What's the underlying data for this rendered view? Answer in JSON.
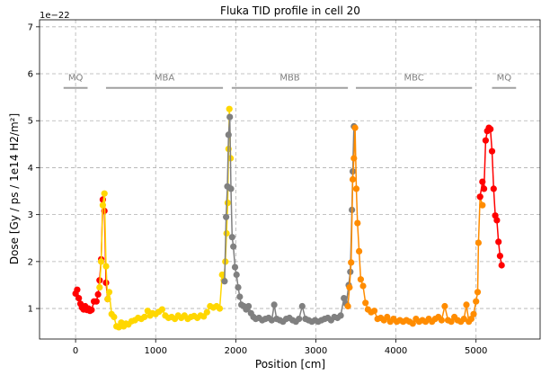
{
  "chart_data": {
    "type": "scatter",
    "title": "Fluka TID profile in cell 20",
    "xlabel": "Position [cm]",
    "ylabel": "Dose [Gy / ps / 1e14 H2/m²]",
    "offset_text": "1e−22",
    "xlim": [
      -450,
      5800
    ],
    "ylim": [
      0.35,
      7.15
    ],
    "xticks": [
      0,
      1000,
      2000,
      3000,
      4000,
      5000
    ],
    "yticks": [
      1,
      2,
      3,
      4,
      5,
      6,
      7
    ],
    "grid": true,
    "regions": [
      {
        "label": "MQ",
        "x0": -150,
        "x1": 150,
        "y": 5.7
      },
      {
        "label": "MBA",
        "x0": 380,
        "x1": 1840,
        "y": 5.7
      },
      {
        "label": "MBB",
        "x0": 1950,
        "x1": 3400,
        "y": 5.7
      },
      {
        "label": "MBC",
        "x0": 3500,
        "x1": 4950,
        "y": 5.7
      },
      {
        "label": "MQ",
        "x0": 5200,
        "x1": 5500,
        "y": 5.7
      }
    ],
    "series": [
      {
        "color": "#ff0000",
        "points": [
          [
            0,
            1.32
          ],
          [
            20,
            1.4
          ],
          [
            40,
            1.22
          ],
          [
            60,
            1.1
          ],
          [
            80,
            1.02
          ],
          [
            100,
            0.98
          ],
          [
            120,
            1.05
          ],
          [
            140,
            0.97
          ],
          [
            160,
            1.0
          ],
          [
            180,
            0.95
          ],
          [
            200,
            0.97
          ],
          [
            230,
            1.15
          ],
          [
            260,
            1.15
          ],
          [
            280,
            1.3
          ],
          [
            300,
            1.6
          ],
          [
            320,
            2.05
          ],
          [
            340,
            3.32
          ],
          [
            360,
            3.08
          ],
          [
            380,
            1.55
          ],
          [
            400,
            1.2
          ]
        ]
      },
      {
        "color": "#ffd700",
        "points": [
          [
            300,
            1.45
          ],
          [
            320,
            2.0
          ],
          [
            340,
            3.2
          ],
          [
            360,
            3.45
          ],
          [
            380,
            1.9
          ],
          [
            400,
            1.2
          ],
          [
            420,
            1.35
          ],
          [
            450,
            0.88
          ],
          [
            480,
            0.82
          ],
          [
            510,
            0.62
          ],
          [
            540,
            0.6
          ],
          [
            570,
            0.7
          ],
          [
            600,
            0.62
          ],
          [
            630,
            0.68
          ],
          [
            660,
            0.66
          ],
          [
            700,
            0.73
          ],
          [
            740,
            0.75
          ],
          [
            780,
            0.8
          ],
          [
            820,
            0.78
          ],
          [
            860,
            0.82
          ],
          [
            900,
            0.95
          ],
          [
            930,
            0.85
          ],
          [
            960,
            0.9
          ],
          [
            1000,
            0.88
          ],
          [
            1040,
            0.93
          ],
          [
            1080,
            0.98
          ],
          [
            1120,
            0.85
          ],
          [
            1160,
            0.8
          ],
          [
            1200,
            0.82
          ],
          [
            1240,
            0.78
          ],
          [
            1280,
            0.85
          ],
          [
            1320,
            0.8
          ],
          [
            1360,
            0.85
          ],
          [
            1400,
            0.78
          ],
          [
            1440,
            0.82
          ],
          [
            1480,
            0.84
          ],
          [
            1520,
            0.8
          ],
          [
            1560,
            0.85
          ],
          [
            1600,
            0.83
          ],
          [
            1640,
            0.92
          ],
          [
            1680,
            1.05
          ],
          [
            1720,
            1.02
          ],
          [
            1760,
            1.05
          ],
          [
            1800,
            1.0
          ],
          [
            1830,
            1.72
          ],
          [
            1850,
            1.6
          ],
          [
            1870,
            2.0
          ],
          [
            1885,
            2.6
          ],
          [
            1900,
            3.25
          ],
          [
            1910,
            4.4
          ],
          [
            1920,
            5.25
          ],
          [
            1935,
            4.2
          ]
        ]
      },
      {
        "color": "#808080",
        "points": [
          [
            1860,
            1.58
          ],
          [
            1880,
            2.95
          ],
          [
            1895,
            3.6
          ],
          [
            1910,
            4.7
          ],
          [
            1925,
            5.08
          ],
          [
            1940,
            3.55
          ],
          [
            1955,
            2.52
          ],
          [
            1970,
            2.32
          ],
          [
            1990,
            1.88
          ],
          [
            2010,
            1.72
          ],
          [
            2030,
            1.45
          ],
          [
            2050,
            1.25
          ],
          [
            2070,
            1.08
          ],
          [
            2100,
            1.05
          ],
          [
            2130,
            0.98
          ],
          [
            2160,
            1.05
          ],
          [
            2190,
            0.9
          ],
          [
            2220,
            0.82
          ],
          [
            2250,
            0.78
          ],
          [
            2290,
            0.8
          ],
          [
            2330,
            0.75
          ],
          [
            2370,
            0.78
          ],
          [
            2410,
            0.8
          ],
          [
            2450,
            0.75
          ],
          [
            2480,
            1.08
          ],
          [
            2510,
            0.78
          ],
          [
            2550,
            0.75
          ],
          [
            2590,
            0.72
          ],
          [
            2630,
            0.78
          ],
          [
            2670,
            0.8
          ],
          [
            2710,
            0.75
          ],
          [
            2750,
            0.72
          ],
          [
            2790,
            0.78
          ],
          [
            2830,
            1.05
          ],
          [
            2870,
            0.78
          ],
          [
            2910,
            0.75
          ],
          [
            2950,
            0.72
          ],
          [
            2990,
            0.75
          ],
          [
            3030,
            0.72
          ],
          [
            3070,
            0.75
          ],
          [
            3110,
            0.78
          ],
          [
            3150,
            0.8
          ],
          [
            3190,
            0.75
          ],
          [
            3230,
            0.82
          ],
          [
            3270,
            0.8
          ],
          [
            3310,
            0.85
          ],
          [
            3350,
            1.22
          ],
          [
            3380,
            1.1
          ],
          [
            3410,
            1.5
          ],
          [
            3430,
            1.78
          ],
          [
            3450,
            3.1
          ],
          [
            3460,
            3.92
          ],
          [
            3475,
            4.88
          ]
        ]
      },
      {
        "color": "#ff8c00",
        "points": [
          [
            3400,
            1.05
          ],
          [
            3420,
            1.45
          ],
          [
            3440,
            1.98
          ],
          [
            3460,
            3.75
          ],
          [
            3475,
            4.2
          ],
          [
            3490,
            4.85
          ],
          [
            3505,
            3.55
          ],
          [
            3520,
            2.82
          ],
          [
            3540,
            2.22
          ],
          [
            3560,
            1.62
          ],
          [
            3590,
            1.48
          ],
          [
            3620,
            1.12
          ],
          [
            3650,
            0.98
          ],
          [
            3690,
            0.92
          ],
          [
            3730,
            0.95
          ],
          [
            3770,
            0.78
          ],
          [
            3810,
            0.8
          ],
          [
            3850,
            0.75
          ],
          [
            3890,
            0.82
          ],
          [
            3930,
            0.72
          ],
          [
            3970,
            0.78
          ],
          [
            4010,
            0.72
          ],
          [
            4050,
            0.75
          ],
          [
            4090,
            0.72
          ],
          [
            4130,
            0.75
          ],
          [
            4170,
            0.72
          ],
          [
            4210,
            0.68
          ],
          [
            4250,
            0.78
          ],
          [
            4290,
            0.72
          ],
          [
            4330,
            0.75
          ],
          [
            4370,
            0.72
          ],
          [
            4410,
            0.78
          ],
          [
            4450,
            0.72
          ],
          [
            4490,
            0.78
          ],
          [
            4530,
            0.82
          ],
          [
            4570,
            0.75
          ],
          [
            4610,
            1.05
          ],
          [
            4650,
            0.75
          ],
          [
            4690,
            0.72
          ],
          [
            4730,
            0.82
          ],
          [
            4770,
            0.75
          ],
          [
            4810,
            0.72
          ],
          [
            4850,
            0.78
          ],
          [
            4880,
            1.08
          ],
          [
            4910,
            0.72
          ],
          [
            4940,
            0.78
          ],
          [
            4970,
            0.88
          ],
          [
            5000,
            1.15
          ],
          [
            5020,
            1.35
          ],
          [
            5030,
            2.4
          ],
          [
            5050,
            3.38
          ],
          [
            5080,
            3.2
          ]
        ]
      },
      {
        "color": "#ff0000",
        "points": [
          [
            5050,
            3.38
          ],
          [
            5080,
            3.7
          ],
          [
            5100,
            3.55
          ],
          [
            5120,
            4.58
          ],
          [
            5140,
            4.78
          ],
          [
            5160,
            4.85
          ],
          [
            5180,
            4.82
          ],
          [
            5200,
            4.35
          ],
          [
            5220,
            3.55
          ],
          [
            5240,
            2.98
          ],
          [
            5260,
            2.88
          ],
          [
            5280,
            2.42
          ],
          [
            5300,
            2.12
          ],
          [
            5320,
            1.92
          ]
        ]
      }
    ]
  }
}
